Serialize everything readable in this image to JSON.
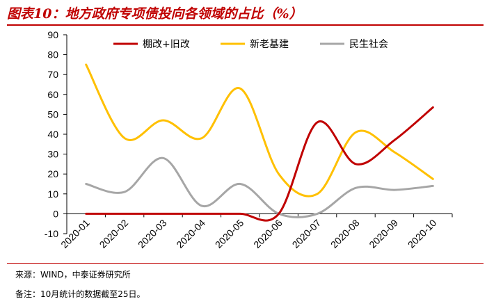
{
  "header": {
    "title": "图表10：地方政府专项债投向各领域的占比（%）"
  },
  "footer": {
    "source": "来源：WIND，中泰证券研究所",
    "remark": "备注：10月统计的数据截至25日。"
  },
  "chart_data": {
    "type": "line",
    "categories": [
      "2020-01",
      "2020-02",
      "2020-03",
      "2020-04",
      "2020-05",
      "2020-06",
      "2020-07",
      "2020-08",
      "2020-09",
      "2020-10"
    ],
    "ylim": [
      -10,
      90
    ],
    "yticks": [
      "90",
      "80",
      "70",
      "60",
      "50",
      "40",
      "30",
      "20",
      "10",
      "0",
      "-10"
    ],
    "grid": false,
    "legend_position": "top-center",
    "series": [
      {
        "name": "棚改+旧改",
        "color": "#c00000",
        "values": [
          0,
          0,
          0,
          0,
          0,
          0,
          46,
          25,
          37,
          53.5
        ]
      },
      {
        "name": "新老基建",
        "color": "#ffc000",
        "values": [
          75,
          38,
          47,
          38,
          63,
          20,
          10,
          41,
          31,
          17.5
        ]
      },
      {
        "name": "民生社会",
        "color": "#a6a6a6",
        "values": [
          15,
          11,
          28,
          4,
          15,
          0,
          0,
          13,
          12,
          14
        ]
      }
    ]
  }
}
